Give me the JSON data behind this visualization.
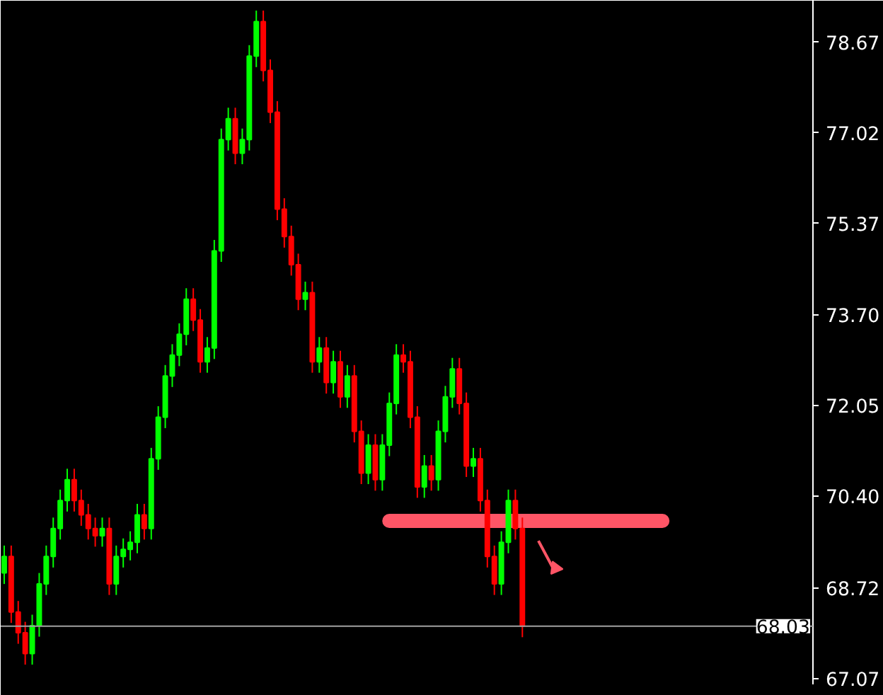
{
  "chart_data": {
    "type": "candlestick",
    "categories": [
      null,
      null,
      null,
      null,
      null,
      null,
      null,
      null,
      null,
      null,
      null,
      null,
      null,
      null,
      null,
      null,
      null,
      null,
      null,
      null,
      null,
      null,
      null,
      null,
      null,
      null,
      null,
      null,
      null,
      null,
      null,
      null,
      null,
      null,
      null,
      null,
      null,
      null,
      null,
      null,
      null,
      null,
      null,
      null,
      null,
      null,
      null,
      null,
      null,
      null,
      null,
      null,
      null,
      null,
      null,
      null,
      null,
      null,
      null,
      null,
      null,
      null,
      null,
      null,
      null,
      null,
      null,
      null,
      null,
      null,
      null,
      null,
      null,
      null,
      null,
      null,
      null,
      null,
      null,
      null,
      null,
      null,
      null,
      null,
      null,
      null,
      null,
      null,
      null,
      null,
      null,
      null,
      null,
      null,
      null,
      null,
      null,
      null,
      null,
      null,
      null,
      null,
      null,
      null,
      null,
      null,
      null,
      null,
      null,
      null,
      null,
      null,
      null,
      null,
      null,
      null
    ],
    "ohlc": [
      [
        69.0,
        69.5,
        68.8,
        69.3
      ],
      [
        69.3,
        69.5,
        68.09,
        68.29
      ],
      [
        68.29,
        68.49,
        67.71,
        67.91
      ],
      [
        67.91,
        68.11,
        67.33,
        67.53
      ],
      [
        67.53,
        68.24,
        67.33,
        68.04
      ],
      [
        68.04,
        69.0,
        67.84,
        68.8
      ],
      [
        68.8,
        69.5,
        68.6,
        69.3
      ],
      [
        69.3,
        70.01,
        69.1,
        69.81
      ],
      [
        69.81,
        70.52,
        69.61,
        70.32
      ],
      [
        70.32,
        70.9,
        70.12,
        70.7
      ],
      [
        70.7,
        70.9,
        70.12,
        70.32
      ],
      [
        70.32,
        70.52,
        69.86,
        70.06
      ],
      [
        70.06,
        70.26,
        69.61,
        69.81
      ],
      [
        69.81,
        70.01,
        69.48,
        69.68
      ],
      [
        69.68,
        70.01,
        69.48,
        69.81
      ],
      [
        69.81,
        70.01,
        68.6,
        68.8
      ],
      [
        68.8,
        69.5,
        68.6,
        69.3
      ],
      [
        69.3,
        69.63,
        69.1,
        69.43
      ],
      [
        69.43,
        69.76,
        69.23,
        69.56
      ],
      [
        69.56,
        70.26,
        69.36,
        70.06
      ],
      [
        70.06,
        70.26,
        69.61,
        69.81
      ],
      [
        69.81,
        71.28,
        69.61,
        71.08
      ],
      [
        71.08,
        72.04,
        70.88,
        71.84
      ],
      [
        71.84,
        72.79,
        71.64,
        72.59
      ],
      [
        72.59,
        73.17,
        72.39,
        72.97
      ],
      [
        72.97,
        73.55,
        72.77,
        73.35
      ],
      [
        73.35,
        74.19,
        73.15,
        73.99
      ],
      [
        73.99,
        74.19,
        73.41,
        73.61
      ],
      [
        73.61,
        73.81,
        72.65,
        72.85
      ],
      [
        72.85,
        73.3,
        72.65,
        73.1
      ],
      [
        73.1,
        75.07,
        72.9,
        74.87
      ],
      [
        74.87,
        77.1,
        74.67,
        76.9
      ],
      [
        76.9,
        77.48,
        76.7,
        77.28
      ],
      [
        77.28,
        77.48,
        76.45,
        76.65
      ],
      [
        76.65,
        77.1,
        76.45,
        76.9
      ],
      [
        76.9,
        78.62,
        76.7,
        78.42
      ],
      [
        78.42,
        79.25,
        78.22,
        79.05
      ],
      [
        79.05,
        79.25,
        77.96,
        78.16
      ],
      [
        78.16,
        78.36,
        77.2,
        77.4
      ],
      [
        77.4,
        77.6,
        75.43,
        75.63
      ],
      [
        75.63,
        75.83,
        74.93,
        75.13
      ],
      [
        75.13,
        75.33,
        74.42,
        74.62
      ],
      [
        74.62,
        74.82,
        73.79,
        73.99
      ],
      [
        73.99,
        74.31,
        73.79,
        74.11
      ],
      [
        74.11,
        74.31,
        72.65,
        72.85
      ],
      [
        72.85,
        73.3,
        72.65,
        73.1
      ],
      [
        73.1,
        73.3,
        72.27,
        72.47
      ],
      [
        72.47,
        73.05,
        72.27,
        72.85
      ],
      [
        72.85,
        73.05,
        72.01,
        72.21
      ],
      [
        72.21,
        72.79,
        72.01,
        72.59
      ],
      [
        72.59,
        72.79,
        71.38,
        71.58
      ],
      [
        71.58,
        71.78,
        70.62,
        70.82
      ],
      [
        70.82,
        71.53,
        70.62,
        71.33
      ],
      [
        71.33,
        71.53,
        70.5,
        70.7
      ],
      [
        70.7,
        71.53,
        70.5,
        71.33
      ],
      [
        71.33,
        72.29,
        71.13,
        72.09
      ],
      [
        72.09,
        73.17,
        71.89,
        72.97
      ],
      [
        72.97,
        73.17,
        72.65,
        72.85
      ],
      [
        72.85,
        73.05,
        71.64,
        71.84
      ],
      [
        71.84,
        72.04,
        70.37,
        70.57
      ],
      [
        70.57,
        71.15,
        70.37,
        70.95
      ],
      [
        70.95,
        71.15,
        70.5,
        70.7
      ],
      [
        70.7,
        71.78,
        70.5,
        71.58
      ],
      [
        71.58,
        72.41,
        71.38,
        72.21
      ],
      [
        72.21,
        72.92,
        72.01,
        72.72
      ],
      [
        72.72,
        72.92,
        71.89,
        72.09
      ],
      [
        72.09,
        72.29,
        70.75,
        70.95
      ],
      [
        70.95,
        71.28,
        70.75,
        71.08
      ],
      [
        71.08,
        71.28,
        70.12,
        70.32
      ],
      [
        70.32,
        70.52,
        69.1,
        69.3
      ],
      [
        69.3,
        69.5,
        68.6,
        68.8
      ],
      [
        68.8,
        69.76,
        68.6,
        69.56
      ],
      [
        69.56,
        70.52,
        69.36,
        70.32
      ],
      [
        70.32,
        70.52,
        69.61,
        69.81
      ],
      [
        69.81,
        70.01,
        67.83,
        68.03
      ],
      null,
      null,
      null,
      null,
      null,
      null,
      null,
      null,
      null,
      null,
      null,
      null,
      null,
      null,
      null,
      null,
      null,
      null,
      null,
      null,
      null,
      null,
      null,
      null,
      null,
      null,
      null,
      null,
      null,
      null,
      null,
      null,
      null,
      null,
      null,
      null,
      null,
      null,
      null,
      null,
      null
    ],
    "colors": [
      "#00ff00",
      "#ff0000",
      "#ff0000",
      "#ff0000",
      "#00ff00",
      "#00ff00",
      "#00ff00",
      "#00ff00",
      "#00ff00",
      "#00ff00",
      "#ff0000",
      "#ff0000",
      "#ff0000",
      "#ff0000",
      "#00ff00",
      "#ff0000",
      "#00ff00",
      "#00ff00",
      "#00ff00",
      "#00ff00",
      "#ff0000",
      "#00ff00",
      "#00ff00",
      "#00ff00",
      "#00ff00",
      "#00ff00",
      "#00ff00",
      "#ff0000",
      "#ff0000",
      "#00ff00",
      "#00ff00",
      "#00ff00",
      "#00ff00",
      "#ff0000",
      "#00ff00",
      "#00ff00",
      "#00ff00",
      "#ff0000",
      "#ff0000",
      "#ff0000",
      "#ff0000",
      "#ff0000",
      "#ff0000",
      "#00ff00",
      "#ff0000",
      "#00ff00",
      "#ff0000",
      "#00ff00",
      "#ff0000",
      "#00ff00",
      "#ff0000",
      "#ff0000",
      "#00ff00",
      "#ff0000",
      "#00ff00",
      "#00ff00",
      "#00ff00",
      "#ff0000",
      "#ff0000",
      "#ff0000",
      "#00ff00",
      "#ff0000",
      "#00ff00",
      "#00ff00",
      "#00ff00",
      "#ff0000",
      "#ff0000",
      "#00ff00",
      "#ff0000",
      "#ff0000",
      "#ff0000",
      "#00ff00",
      "#00ff00",
      "#ff0000",
      "#ff0000",
      null,
      null,
      null,
      null,
      null,
      null,
      null,
      null,
      null,
      null,
      null,
      null,
      null,
      null,
      null,
      null,
      null,
      null,
      null,
      null,
      null,
      null,
      null,
      null,
      null,
      null,
      null,
      null,
      null,
      null,
      null,
      null,
      null,
      null,
      null,
      null,
      null,
      null,
      null,
      null,
      null
    ],
    "ylim": [
      66.97,
      79.43
    ],
    "yticks": [
      67.07,
      68.72,
      {
        "value": 70.4,
        "label": "70.40"
      },
      72.05,
      {
        "value": 73.7,
        "label": "73.70"
      },
      75.37,
      77.02,
      78.67
    ],
    "series": [
      {
        "type": "line",
        "color": "#ff5566",
        "values": [
          null,
          null,
          null,
          null,
          null,
          null,
          null,
          null,
          null,
          null,
          null,
          null,
          null,
          null,
          null,
          null,
          null,
          null,
          null,
          null,
          null,
          null,
          null,
          null,
          null,
          null,
          null,
          null,
          null,
          null,
          null,
          null,
          null,
          null,
          null,
          null,
          null,
          null,
          null,
          null,
          null,
          null,
          null,
          null,
          null,
          null,
          null,
          null,
          null,
          null,
          null,
          null,
          null,
          null,
          null,
          69.95,
          69.95,
          69.95,
          69.95,
          69.95,
          69.95,
          69.95,
          69.95,
          69.95,
          69.95,
          69.95,
          69.95,
          69.95,
          69.95,
          69.95,
          69.95,
          69.95,
          69.95,
          69.95,
          69.95,
          69.95,
          69.95,
          69.95,
          69.95,
          69.95,
          69.95,
          69.95,
          69.95,
          69.95,
          69.95,
          69.95,
          69.95,
          69.95,
          69.95,
          69.95,
          69.95,
          69.95,
          69.95,
          69.95,
          69.95,
          null,
          null,
          null,
          null,
          null,
          null,
          null,
          null,
          null,
          null,
          null,
          null,
          null,
          null,
          null,
          null,
          null,
          null,
          null,
          null,
          null
        ]
      }
    ],
    "tick_labels": "y",
    "grid": false,
    "ref_lines": [
      {
        "axis": "y",
        "value": 68.03,
        "label": "68.03",
        "color": "#a0a0a0"
      }
    ]
  }
}
